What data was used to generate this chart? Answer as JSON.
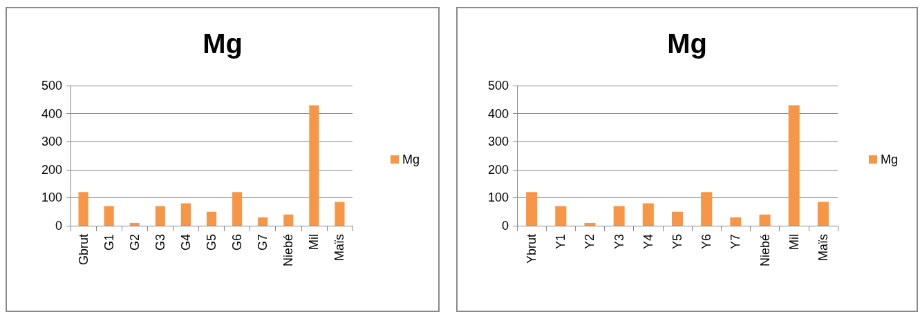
{
  "chart_data": [
    {
      "type": "bar",
      "title": "Mg",
      "categories": [
        "Gbrut",
        "G1",
        "G2",
        "G3",
        "G4",
        "G5",
        "G6",
        "G7",
        "Niebé",
        "Mil",
        "Maïs"
      ],
      "series": [
        {
          "name": "Mg",
          "color": "#f79646",
          "values": [
            120,
            70,
            10,
            70,
            80,
            50,
            120,
            30,
            40,
            430,
            85
          ]
        }
      ],
      "ylim": [
        0,
        500
      ],
      "yticks": [
        0,
        100,
        200,
        300,
        400,
        500
      ],
      "grid": "y",
      "legend": "right"
    },
    {
      "type": "bar",
      "title": "Mg",
      "categories": [
        "Ybrut",
        "Y1",
        "Y2",
        "Y3",
        "Y4",
        "Y5",
        "Y6",
        "Y7",
        "Niebé",
        "Mil",
        "Maïs"
      ],
      "series": [
        {
          "name": "Mg",
          "color": "#f79646",
          "values": [
            120,
            70,
            10,
            70,
            80,
            50,
            120,
            30,
            40,
            430,
            85
          ]
        }
      ],
      "ylim": [
        0,
        500
      ],
      "yticks": [
        0,
        100,
        200,
        300,
        400,
        500
      ],
      "grid": "y",
      "legend": "right"
    }
  ]
}
